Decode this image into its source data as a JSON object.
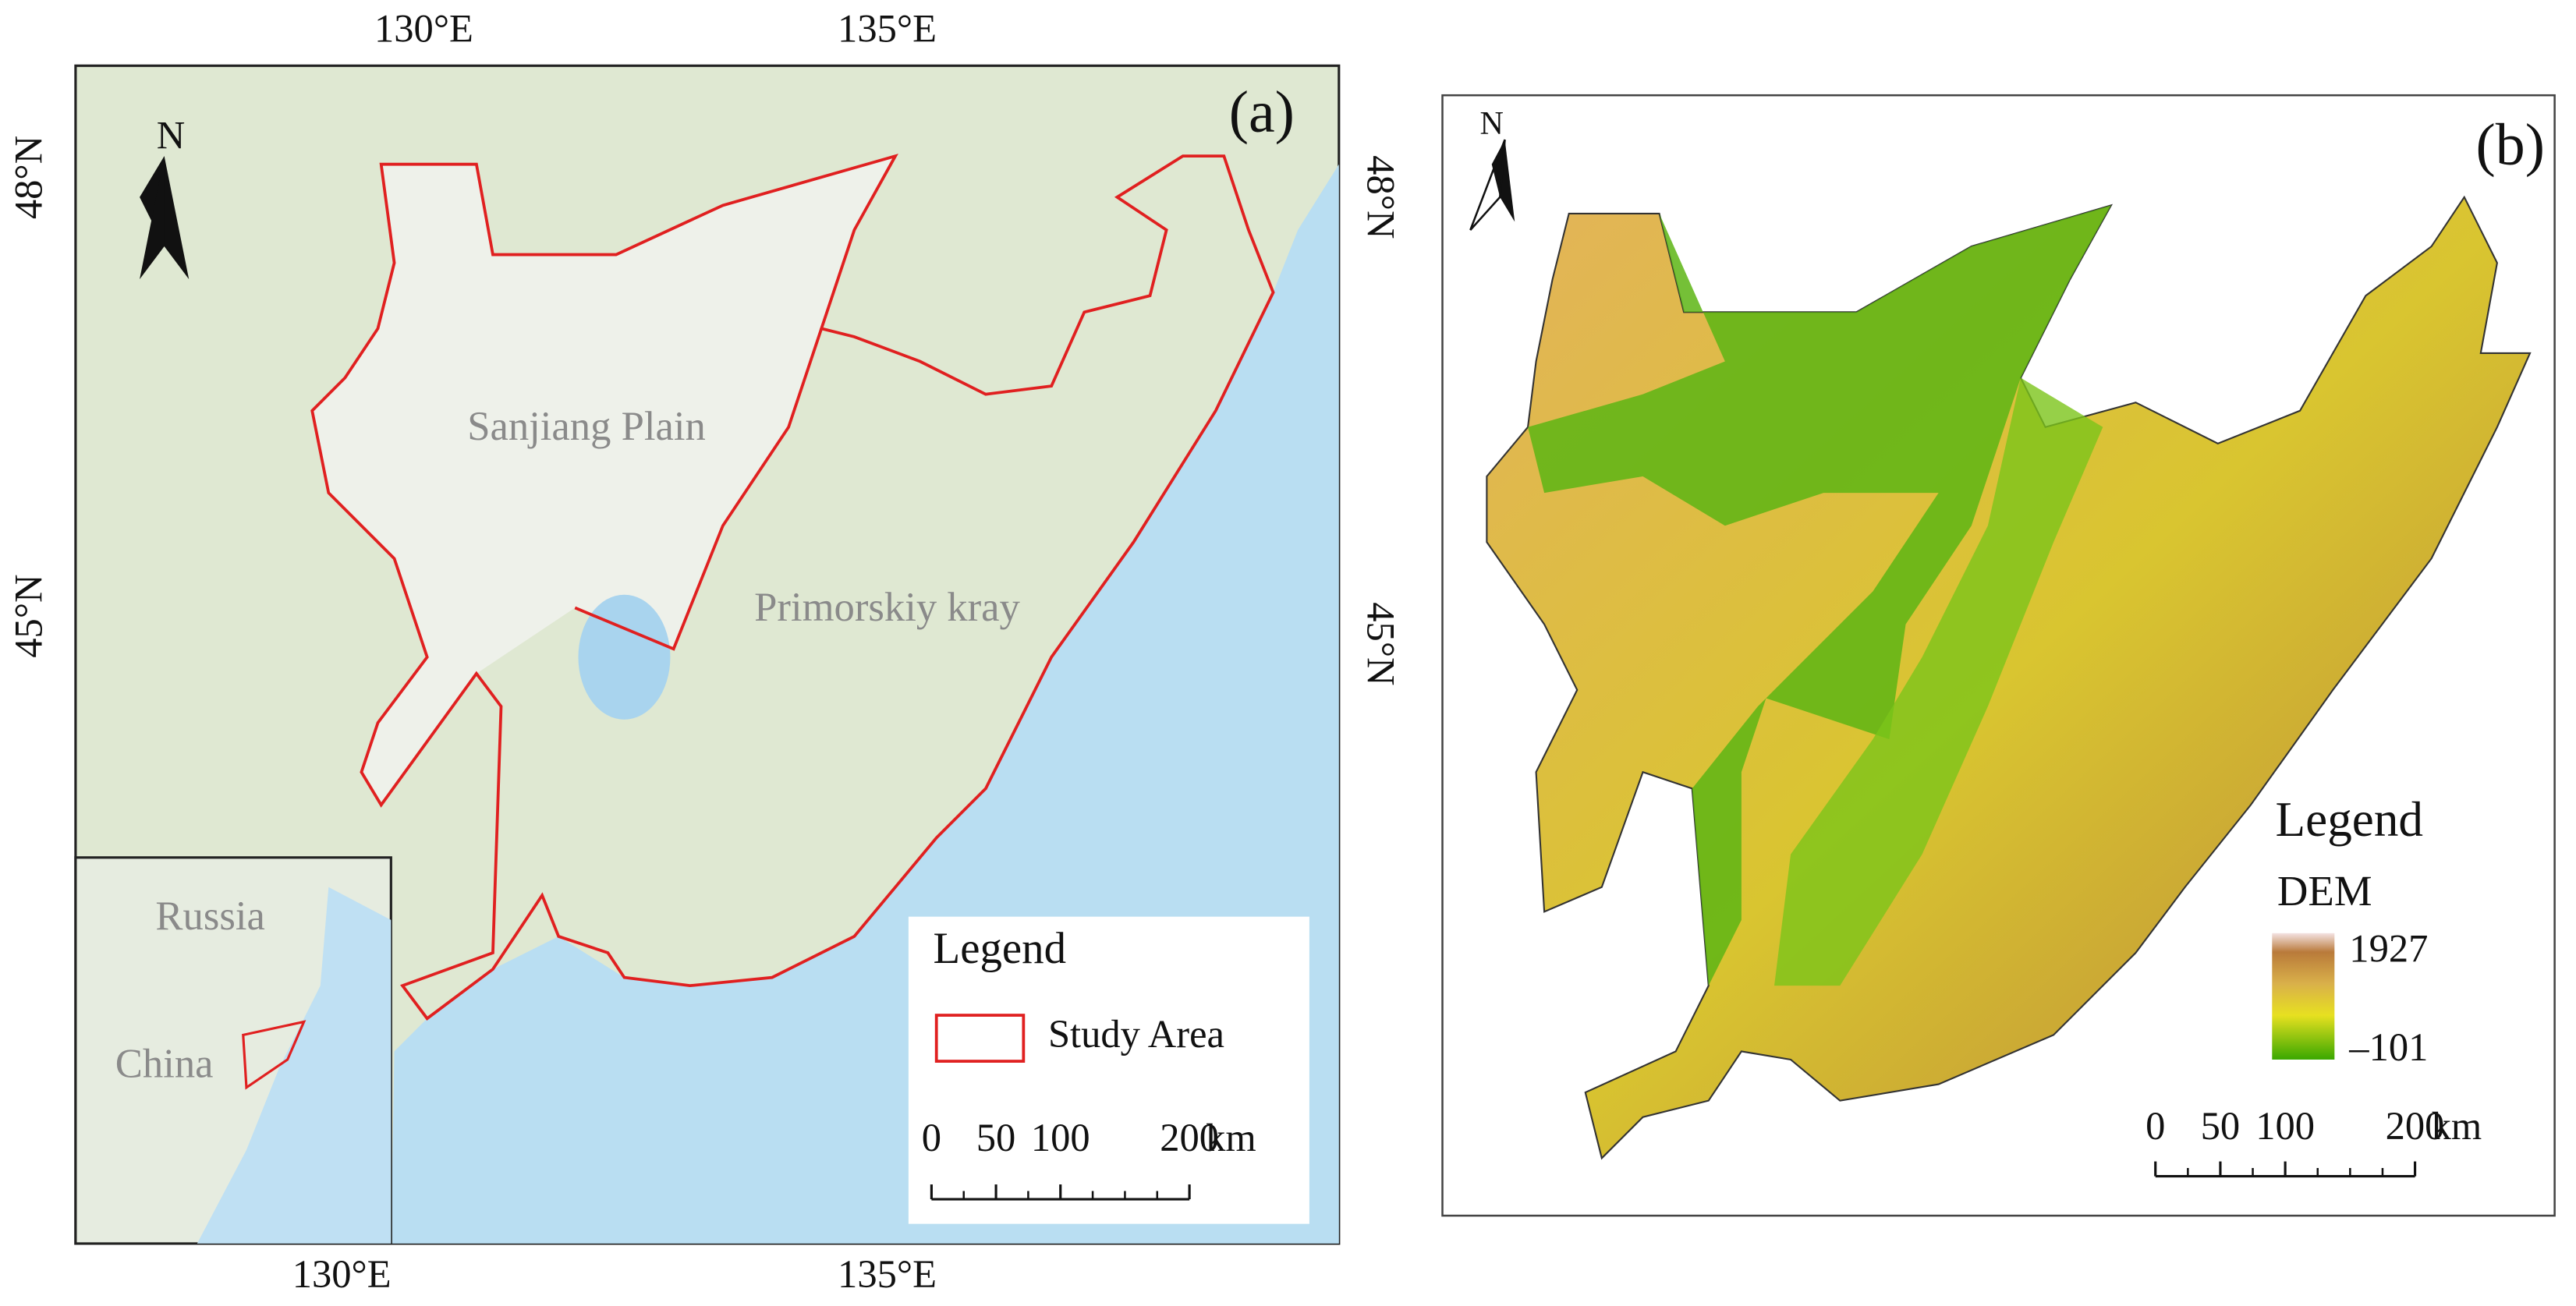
{
  "panel_a": {
    "tag": "(a)",
    "north": "N",
    "lon_top": [
      "130°E",
      "135°E"
    ],
    "lon_bottom": [
      "130°E",
      "135°E"
    ],
    "lat_left": [
      "48°N",
      "45°N"
    ],
    "lat_right": [
      "48°N",
      "45°N"
    ],
    "places": [
      "Sanjiang Plain",
      "Primorskiy kray"
    ],
    "inset": [
      "Russia",
      "China"
    ],
    "legend": {
      "title": "Legend",
      "item": "Study Area"
    },
    "scale_bar": {
      "ticks": [
        0,
        50,
        100,
        200
      ],
      "unit": "km"
    }
  },
  "panel_b": {
    "tag": "(b)",
    "north": "N",
    "legend": {
      "title": "Legend",
      "layer": "DEM",
      "high": "1927",
      "low": "–101"
    },
    "scale_bar": {
      "ticks": [
        0,
        50,
        100,
        200
      ],
      "unit": "km"
    }
  }
}
